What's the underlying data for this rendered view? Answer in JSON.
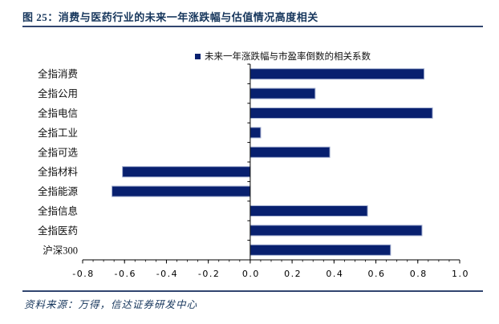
{
  "header": {
    "title": "图 25：消费与医药行业的未来一年涨跌幅与估值情况高度相关"
  },
  "legend": {
    "label": "未来一年涨跌幅与市盈率倒数的相关系数",
    "swatch_color": "#08206F"
  },
  "chart_data": {
    "type": "bar",
    "orientation": "horizontal",
    "title": "消费与医药行业的未来一年涨跌幅与估值情况高度相关",
    "series_name": "未来一年涨跌幅与市盈率倒数的相关系数",
    "categories": [
      "全指消费",
      "全指公用",
      "全指电信",
      "全指工业",
      "全指可选",
      "全指材料",
      "全指能源",
      "全指信息",
      "全指医药",
      "沪深300"
    ],
    "values": [
      0.83,
      0.31,
      0.87,
      0.05,
      0.38,
      -0.61,
      -0.66,
      0.56,
      0.82,
      0.67
    ],
    "xlim": [
      -0.8,
      1.0
    ],
    "x_ticks": [
      -0.8,
      -0.6,
      -0.4,
      -0.2,
      0.0,
      0.2,
      0.4,
      0.6,
      0.8,
      1.0
    ],
    "x_minor_tick_step": 0.05,
    "grid": false,
    "legend_position": "top",
    "bar_color": "#08206F",
    "bar_border_color": "#A2AED0"
  },
  "footer": {
    "source": "资料来源：万得，信达证券研发中心"
  },
  "colors": {
    "accent_navy": "#16365C",
    "rule_navy": "#31456F",
    "axis_black": "#000000"
  }
}
